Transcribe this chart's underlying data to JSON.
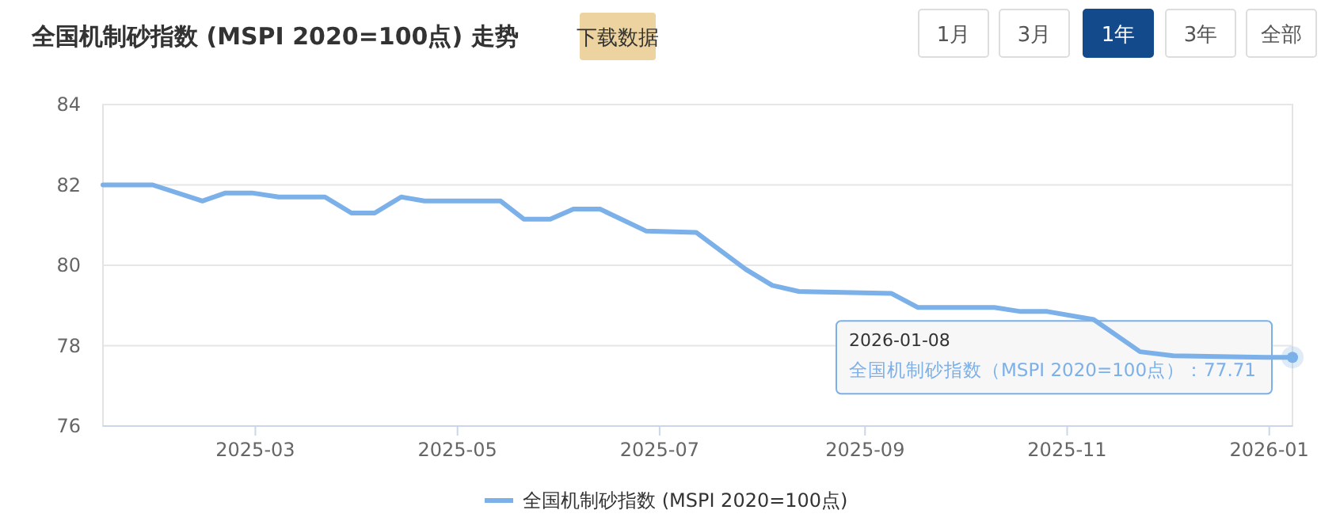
{
  "chart_data": {
    "type": "line",
    "title": "全国机制砂指数 (MSPI 2020=100点) 走势",
    "annotations": [
      "下载数据",
      "1月",
      "3月",
      "1年",
      "3年",
      "全部",
      {
        "text": "2026-01-08\n全国机制砂指数（MSPI 2020=100点）：77.71",
        "x": "2026-01-08",
        "y": 77.71
      }
    ],
    "series": [
      {
        "name": "全国机制砂指数 (MSPI 2020=100点)",
        "color": "#7cb0e8",
        "x": [
          "2025-01-14",
          "2025-01-29",
          "2025-02-13",
          "2025-02-20",
          "2025-02-28",
          "2025-03-08",
          "2025-03-22",
          "2025-03-30",
          "2025-04-06",
          "2025-04-14",
          "2025-04-21",
          "2025-05-14",
          "2025-05-21",
          "2025-05-29",
          "2025-06-05",
          "2025-06-13",
          "2025-06-27",
          "2025-07-12",
          "2025-07-27",
          "2025-08-04",
          "2025-08-12",
          "2025-09-09",
          "2025-09-17",
          "2025-10-10",
          "2025-10-18",
          "2025-10-26",
          "2025-11-09",
          "2025-11-23",
          "2025-12-03",
          "2025-12-31",
          "2026-01-08"
        ],
        "values": [
          82.0,
          82.0,
          81.6,
          81.8,
          81.8,
          81.7,
          81.7,
          81.3,
          81.3,
          81.7,
          81.6,
          81.6,
          81.15,
          81.15,
          81.4,
          81.4,
          80.85,
          80.82,
          79.9,
          79.5,
          79.35,
          79.3,
          78.95,
          78.95,
          78.85,
          78.85,
          78.65,
          77.85,
          77.75,
          77.71,
          77.71
        ]
      }
    ],
    "xlim": [
      "2025-01-14",
      "2026-01-08"
    ],
    "xticks": [
      "2025-03",
      "2025-05",
      "2025-07",
      "2025-09",
      "2025-11",
      "2026-01"
    ],
    "ylim": [
      76,
      84
    ],
    "yticks": [
      76,
      78,
      80,
      82,
      84
    ],
    "grid": "y",
    "legend": "bottom",
    "marker": "none",
    "line_style": "solid"
  }
}
